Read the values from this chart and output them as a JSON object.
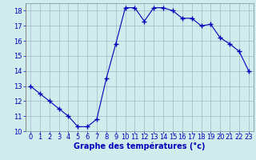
{
  "x": [
    0,
    1,
    2,
    3,
    4,
    5,
    6,
    7,
    8,
    9,
    10,
    11,
    12,
    13,
    14,
    15,
    16,
    17,
    18,
    19,
    20,
    21,
    22,
    23
  ],
  "y": [
    13.0,
    12.5,
    12.0,
    11.5,
    11.0,
    10.3,
    10.3,
    10.8,
    13.5,
    15.8,
    18.2,
    18.2,
    17.3,
    18.2,
    18.2,
    18.0,
    17.5,
    17.5,
    17.0,
    17.1,
    16.2,
    15.8,
    15.3,
    14.0
  ],
  "line_color": "#0000bb",
  "marker": "+",
  "marker_size": 4,
  "marker_lw": 1.0,
  "bg_color": "#d0ecec",
  "grid_color": "#a0b8c8",
  "xlabel": "Graphe des températures (°c)",
  "xlabel_color": "#0000bb",
  "xlabel_fontsize": 7,
  "tick_color": "#0000bb",
  "tick_fontsize": 6,
  "ylim": [
    10,
    18.5
  ],
  "xlim": [
    -0.5,
    23.5
  ],
  "yticks": [
    10,
    11,
    12,
    13,
    14,
    15,
    16,
    17,
    18
  ],
  "xticks": [
    0,
    1,
    2,
    3,
    4,
    5,
    6,
    7,
    8,
    9,
    10,
    11,
    12,
    13,
    14,
    15,
    16,
    17,
    18,
    19,
    20,
    21,
    22,
    23
  ]
}
